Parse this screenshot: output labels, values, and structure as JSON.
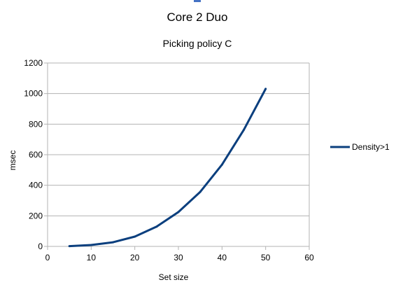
{
  "chart_data": {
    "type": "line",
    "title": "Core 2 Duo",
    "subtitle": "Picking policy C",
    "xlabel": "Set size",
    "ylabel": "msec",
    "xlim": [
      0,
      60
    ],
    "ylim": [
      0,
      1200
    ],
    "xticks": [
      "0",
      "10",
      "20",
      "30",
      "40",
      "50",
      "60"
    ],
    "yticks": [
      "0",
      "200",
      "400",
      "600",
      "800",
      "1000",
      "1200"
    ],
    "grid": "horizontal",
    "legend_position": "right",
    "series": [
      {
        "name": "Density>1",
        "color": "#0b3f7e",
        "x": [
          5,
          10,
          15,
          20,
          25,
          30,
          35,
          40,
          45,
          50
        ],
        "y": [
          2,
          9,
          27,
          64,
          129,
          225,
          357,
          535,
          763,
          1031
        ]
      }
    ]
  }
}
